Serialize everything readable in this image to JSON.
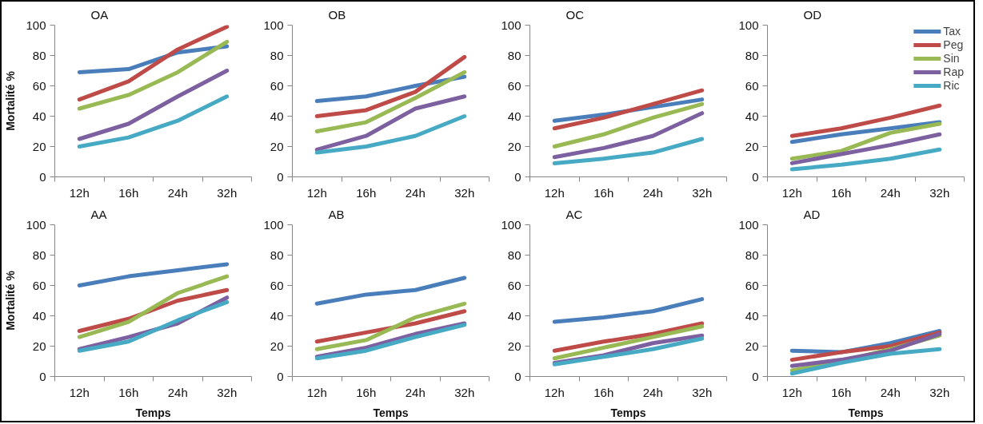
{
  "chart_data": [
    {
      "type": "line",
      "title": "OA",
      "ylabel": "Mortalité %",
      "categories": [
        "12h",
        "16h",
        "24h",
        "32h"
      ],
      "ylim": [
        0,
        100
      ],
      "yticks": [
        0,
        20,
        40,
        60,
        80,
        100
      ],
      "series": [
        {
          "color": "#4a7ebb",
          "values": [
            69,
            71,
            82,
            86
          ]
        },
        {
          "color": "#be4b48",
          "values": [
            51,
            63,
            84,
            99
          ]
        },
        {
          "color": "#98b954",
          "values": [
            45,
            54,
            69,
            89
          ]
        },
        {
          "color": "#7d60a0",
          "values": [
            25,
            35,
            53,
            70
          ]
        },
        {
          "color": "#46aac5",
          "values": [
            20,
            26,
            37,
            53
          ]
        }
      ]
    },
    {
      "type": "line",
      "title": "OB",
      "categories": [
        "12h",
        "16h",
        "24h",
        "32h"
      ],
      "ylim": [
        0,
        100
      ],
      "yticks": [
        0,
        20,
        40,
        60,
        80,
        100
      ],
      "series": [
        {
          "color": "#4a7ebb",
          "values": [
            50,
            53,
            60,
            66
          ]
        },
        {
          "color": "#be4b48",
          "values": [
            40,
            44,
            56,
            79
          ]
        },
        {
          "color": "#98b954",
          "values": [
            30,
            36,
            52,
            69
          ]
        },
        {
          "color": "#7d60a0",
          "values": [
            18,
            27,
            45,
            53
          ]
        },
        {
          "color": "#46aac5",
          "values": [
            16,
            20,
            27,
            40
          ]
        }
      ]
    },
    {
      "type": "line",
      "title": "OC",
      "categories": [
        "12h",
        "16h",
        "24h",
        "32h"
      ],
      "ylim": [
        0,
        100
      ],
      "yticks": [
        0,
        20,
        40,
        60,
        80,
        100
      ],
      "series": [
        {
          "color": "#4a7ebb",
          "values": [
            37,
            41,
            46,
            51
          ]
        },
        {
          "color": "#be4b48",
          "values": [
            32,
            39,
            48,
            57
          ]
        },
        {
          "color": "#98b954",
          "values": [
            20,
            28,
            39,
            48
          ]
        },
        {
          "color": "#7d60a0",
          "values": [
            13,
            19,
            27,
            42
          ]
        },
        {
          "color": "#46aac5",
          "values": [
            9,
            12,
            16,
            25
          ]
        }
      ]
    },
    {
      "type": "line",
      "title": "OD",
      "legend": "top right",
      "categories": [
        "12h",
        "16h",
        "24h",
        "32h"
      ],
      "ylim": [
        0,
        100
      ],
      "yticks": [
        0,
        20,
        40,
        60,
        80,
        100
      ],
      "series": [
        {
          "name": "Tax",
          "color": "#4a7ebb",
          "values": [
            23,
            28,
            32,
            36
          ]
        },
        {
          "name": "Peg",
          "color": "#be4b48",
          "values": [
            27,
            32,
            39,
            47
          ]
        },
        {
          "name": "Sin",
          "color": "#98b954",
          "values": [
            12,
            17,
            29,
            35
          ]
        },
        {
          "name": "Rap",
          "color": "#7d60a0",
          "values": [
            9,
            15,
            21,
            28
          ]
        },
        {
          "name": "Ric",
          "color": "#46aac5",
          "values": [
            5,
            8,
            12,
            18
          ]
        }
      ]
    },
    {
      "type": "line",
      "title": "AA",
      "ylabel": "Mortalité %",
      "xlabel": "Temps",
      "categories": [
        "12h",
        "16h",
        "24h",
        "32h"
      ],
      "ylim": [
        0,
        100
      ],
      "yticks": [
        0,
        20,
        40,
        60,
        80,
        100
      ],
      "series": [
        {
          "color": "#4a7ebb",
          "values": [
            60,
            66,
            70,
            74
          ]
        },
        {
          "color": "#be4b48",
          "values": [
            30,
            38,
            50,
            57
          ]
        },
        {
          "color": "#98b954",
          "values": [
            26,
            36,
            55,
            66
          ]
        },
        {
          "color": "#7d60a0",
          "values": [
            18,
            26,
            35,
            52
          ]
        },
        {
          "color": "#46aac5",
          "values": [
            17,
            23,
            37,
            49
          ]
        }
      ]
    },
    {
      "type": "line",
      "title": "AB",
      "xlabel": "Temps",
      "categories": [
        "12h",
        "16h",
        "24h",
        "32h"
      ],
      "ylim": [
        0,
        100
      ],
      "yticks": [
        0,
        20,
        40,
        60,
        80,
        100
      ],
      "series": [
        {
          "color": "#4a7ebb",
          "values": [
            48,
            54,
            57,
            65
          ]
        },
        {
          "color": "#be4b48",
          "values": [
            23,
            29,
            35,
            43
          ]
        },
        {
          "color": "#98b954",
          "values": [
            18,
            24,
            39,
            48
          ]
        },
        {
          "color": "#7d60a0",
          "values": [
            13,
            19,
            28,
            35
          ]
        },
        {
          "color": "#46aac5",
          "values": [
            12,
            17,
            26,
            34
          ]
        }
      ]
    },
    {
      "type": "line",
      "title": "AC",
      "xlabel": "Temps",
      "categories": [
        "12h",
        "16h",
        "24h",
        "32h"
      ],
      "ylim": [
        0,
        100
      ],
      "yticks": [
        0,
        20,
        40,
        60,
        80,
        100
      ],
      "series": [
        {
          "color": "#4a7ebb",
          "values": [
            36,
            39,
            43,
            51
          ]
        },
        {
          "color": "#be4b48",
          "values": [
            17,
            23,
            28,
            35
          ]
        },
        {
          "color": "#98b954",
          "values": [
            12,
            19,
            26,
            33
          ]
        },
        {
          "color": "#7d60a0",
          "values": [
            9,
            14,
            22,
            27
          ]
        },
        {
          "color": "#46aac5",
          "values": [
            8,
            13,
            18,
            25
          ]
        }
      ]
    },
    {
      "type": "line",
      "title": "AD",
      "xlabel": "Temps",
      "categories": [
        "12h",
        "16h",
        "24h",
        "32h"
      ],
      "ylim": [
        0,
        100
      ],
      "yticks": [
        0,
        20,
        40,
        60,
        80,
        100
      ],
      "series": [
        {
          "color": "#4a7ebb",
          "values": [
            17,
            16,
            22,
            30
          ]
        },
        {
          "color": "#be4b48",
          "values": [
            11,
            16,
            20,
            29
          ]
        },
        {
          "color": "#98b954",
          "values": [
            4,
            10,
            18,
            27
          ]
        },
        {
          "color": "#7d60a0",
          "values": [
            7,
            11,
            17,
            28
          ]
        },
        {
          "color": "#46aac5",
          "values": [
            2,
            9,
            15,
            18
          ]
        }
      ]
    }
  ]
}
